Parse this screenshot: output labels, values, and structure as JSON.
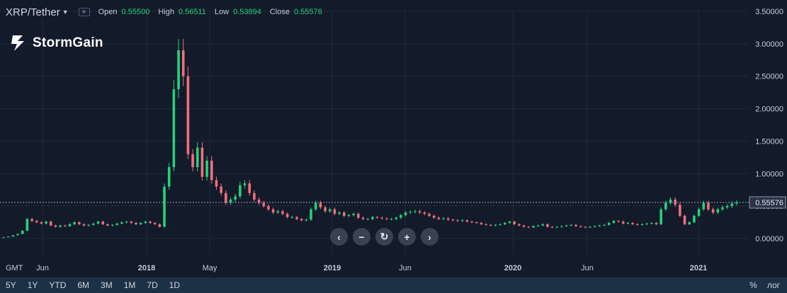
{
  "header": {
    "symbol": "XRP/Tether",
    "open_label": "Open",
    "open_value": "0.55500",
    "high_label": "High",
    "high_value": "0.56511",
    "low_label": "Low",
    "low_value": "0.53894",
    "close_label": "Close",
    "close_value": "0.55576"
  },
  "brand": {
    "name": "StormGain"
  },
  "colors": {
    "background": "#131a2a",
    "up": "#26d07c",
    "down": "#ef6f7c",
    "grid": "#1f2a3d",
    "axis_text": "#c7ccd8"
  },
  "chart_data": {
    "type": "candlestick",
    "y_ticks": [
      "3.50000",
      "3.00000",
      "2.50000",
      "2.00000",
      "1.50000",
      "1.00000",
      "0.50000",
      "0.00000"
    ],
    "ylim": [
      -0.05,
      3.55
    ],
    "x_tick_labels": [
      "Jun",
      "2018",
      "May",
      "2019",
      "Jun",
      "2020",
      "Jun",
      "2021"
    ],
    "last_price_label": "0.55576",
    "last_price": 0.55576,
    "close_series": [
      0.02,
      0.03,
      0.05,
      0.07,
      0.12,
      0.3,
      0.27,
      0.25,
      0.23,
      0.26,
      0.2,
      0.18,
      0.2,
      0.19,
      0.22,
      0.25,
      0.22,
      0.2,
      0.21,
      0.23,
      0.26,
      0.22,
      0.2,
      0.21,
      0.23,
      0.25,
      0.26,
      0.24,
      0.22,
      0.24,
      0.26,
      0.24,
      0.22,
      0.18,
      0.8,
      1.1,
      2.3,
      2.9,
      2.5,
      1.3,
      1.1,
      1.4,
      0.95,
      1.2,
      0.9,
      0.8,
      0.7,
      0.55,
      0.6,
      0.65,
      0.82,
      0.85,
      0.7,
      0.6,
      0.55,
      0.5,
      0.45,
      0.4,
      0.42,
      0.38,
      0.33,
      0.33,
      0.3,
      0.28,
      0.29,
      0.45,
      0.55,
      0.48,
      0.42,
      0.45,
      0.38,
      0.4,
      0.35,
      0.36,
      0.38,
      0.32,
      0.3,
      0.3,
      0.33,
      0.32,
      0.31,
      0.3,
      0.3,
      0.32,
      0.36,
      0.4,
      0.41,
      0.42,
      0.4,
      0.38,
      0.35,
      0.32,
      0.3,
      0.31,
      0.29,
      0.28,
      0.27,
      0.28,
      0.26,
      0.25,
      0.24,
      0.22,
      0.21,
      0.2,
      0.21,
      0.22,
      0.24,
      0.26,
      0.22,
      0.2,
      0.18,
      0.17,
      0.19,
      0.2,
      0.22,
      0.18,
      0.17,
      0.18,
      0.19,
      0.2,
      0.21,
      0.19,
      0.18,
      0.17,
      0.18,
      0.19,
      0.2,
      0.21,
      0.24,
      0.27,
      0.26,
      0.23,
      0.24,
      0.22,
      0.21,
      0.22,
      0.23,
      0.24,
      0.22,
      0.45,
      0.55,
      0.6,
      0.52,
      0.35,
      0.22,
      0.25,
      0.35,
      0.45,
      0.55,
      0.45,
      0.4,
      0.45,
      0.48,
      0.5,
      0.54,
      0.55576
    ]
  },
  "navigation": {
    "prev": "‹",
    "zoom_out": "−",
    "reset": "↻",
    "zoom_in": "+",
    "next": "›"
  },
  "bottombar": {
    "gmt": "GMT",
    "ranges": [
      "5Y",
      "1Y",
      "YTD",
      "6M",
      "3M",
      "1M",
      "7D",
      "1D"
    ],
    "percent": "%",
    "log": "лог"
  }
}
